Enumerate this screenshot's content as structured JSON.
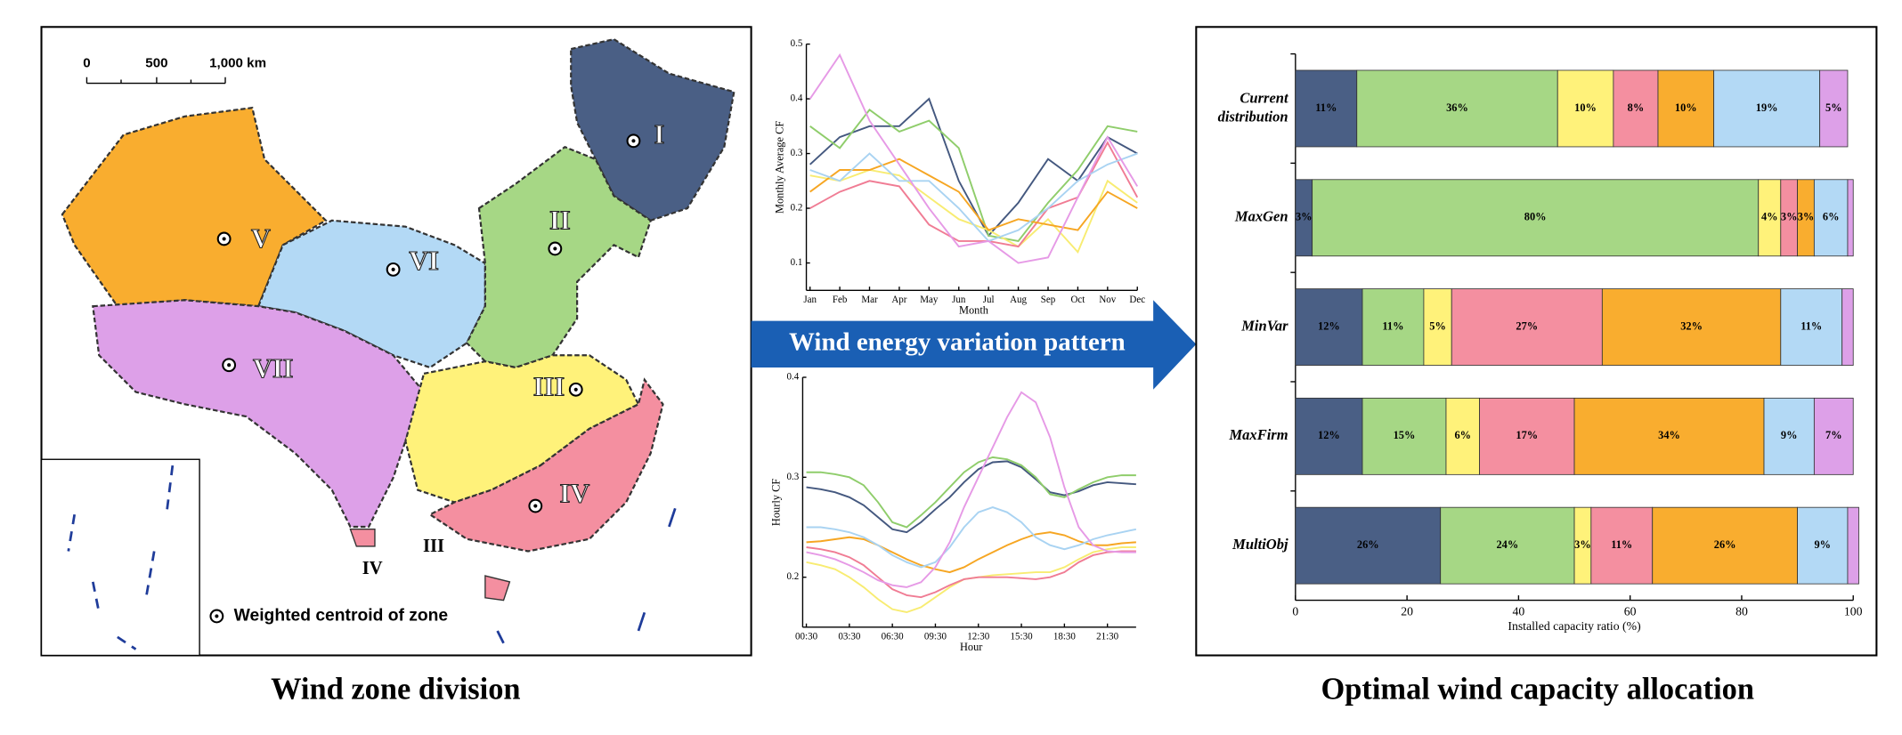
{
  "map": {
    "scale_labels": [
      "0",
      "500",
      "1,000 km"
    ],
    "zones": [
      "I",
      "II",
      "III",
      "IV",
      "V",
      "VI",
      "VII"
    ],
    "extra_labels": [
      "IV",
      "III"
    ],
    "legend": "Weighted centroid of zone",
    "caption": "Wind zone division"
  },
  "banner": "Wind energy variation pattern",
  "chart_data": [
    {
      "type": "line",
      "xlabel": "Month",
      "ylabel": "Monthly Average CF",
      "categories": [
        "Jan",
        "Feb",
        "Mar",
        "Apr",
        "May",
        "Jun",
        "Jul",
        "Aug",
        "Sep",
        "Oct",
        "Nov",
        "Dec"
      ],
      "ylim": [
        0.05,
        0.5
      ],
      "yticks": [
        0.1,
        0.2,
        0.3,
        0.4,
        0.5
      ],
      "series": [
        {
          "color": "#44587f",
          "values": [
            0.28,
            0.33,
            0.35,
            0.35,
            0.4,
            0.25,
            0.15,
            0.21,
            0.29,
            0.25,
            0.33,
            0.3
          ]
        },
        {
          "color": "#8fcd6b",
          "values": [
            0.35,
            0.31,
            0.38,
            0.34,
            0.36,
            0.31,
            0.15,
            0.14,
            0.21,
            0.27,
            0.35,
            0.34
          ]
        },
        {
          "color": "#f8ec72",
          "values": [
            0.26,
            0.25,
            0.27,
            0.26,
            0.22,
            0.18,
            0.16,
            0.13,
            0.18,
            0.12,
            0.25,
            0.21
          ]
        },
        {
          "color": "#f07c94",
          "values": [
            0.2,
            0.23,
            0.25,
            0.24,
            0.17,
            0.14,
            0.14,
            0.13,
            0.2,
            0.22,
            0.32,
            0.22
          ]
        },
        {
          "color": "#f6a623",
          "values": [
            0.23,
            0.27,
            0.27,
            0.29,
            0.26,
            0.23,
            0.16,
            0.18,
            0.17,
            0.16,
            0.23,
            0.2
          ]
        },
        {
          "color": "#a9d3f2",
          "values": [
            0.27,
            0.25,
            0.3,
            0.25,
            0.25,
            0.2,
            0.14,
            0.16,
            0.2,
            0.25,
            0.28,
            0.3
          ]
        },
        {
          "color": "#e69ae6",
          "values": [
            0.4,
            0.48,
            0.36,
            0.28,
            0.2,
            0.13,
            0.14,
            0.1,
            0.11,
            0.22,
            0.33,
            0.24
          ]
        }
      ]
    },
    {
      "type": "line",
      "xlabel": "Hour",
      "ylabel": "Hourly CF",
      "categories": [
        "00:30",
        null,
        null,
        "03:30",
        null,
        null,
        "06:30",
        null,
        null,
        "09:30",
        null,
        null,
        "12:30",
        null,
        null,
        "15:30",
        null,
        null,
        "18:30",
        null,
        null,
        "21:30",
        null,
        null
      ],
      "ylim": [
        0.15,
        0.4
      ],
      "yticks": [
        0.2,
        0.3,
        0.4
      ],
      "series": [
        {
          "color": "#44587f",
          "values": [
            0.29,
            0.288,
            0.285,
            0.28,
            0.272,
            0.26,
            0.248,
            0.245,
            0.255,
            0.268,
            0.28,
            0.295,
            0.308,
            0.315,
            0.316,
            0.31,
            0.298,
            0.285,
            0.282,
            0.286,
            0.292,
            0.295,
            0.294,
            0.293
          ]
        },
        {
          "color": "#8fcd6b",
          "values": [
            0.305,
            0.305,
            0.303,
            0.3,
            0.292,
            0.275,
            0.255,
            0.25,
            0.262,
            0.275,
            0.29,
            0.305,
            0.315,
            0.32,
            0.318,
            0.312,
            0.3,
            0.283,
            0.28,
            0.288,
            0.295,
            0.3,
            0.302,
            0.302
          ]
        },
        {
          "color": "#f8ec72",
          "values": [
            0.215,
            0.212,
            0.208,
            0.2,
            0.19,
            0.178,
            0.168,
            0.165,
            0.17,
            0.18,
            0.19,
            0.198,
            0.2,
            0.202,
            0.203,
            0.204,
            0.205,
            0.205,
            0.21,
            0.218,
            0.225,
            0.228,
            0.23,
            0.23
          ]
        },
        {
          "color": "#f07c94",
          "values": [
            0.23,
            0.228,
            0.225,
            0.22,
            0.212,
            0.2,
            0.188,
            0.182,
            0.18,
            0.185,
            0.192,
            0.198,
            0.2,
            0.2,
            0.2,
            0.199,
            0.198,
            0.2,
            0.205,
            0.215,
            0.222,
            0.225,
            0.226,
            0.226
          ]
        },
        {
          "color": "#f6a623",
          "values": [
            0.235,
            0.236,
            0.238,
            0.24,
            0.238,
            0.232,
            0.225,
            0.218,
            0.212,
            0.208,
            0.205,
            0.21,
            0.218,
            0.225,
            0.232,
            0.238,
            0.243,
            0.245,
            0.242,
            0.236,
            0.232,
            0.232,
            0.234,
            0.235
          ]
        },
        {
          "color": "#a9d3f2",
          "values": [
            0.25,
            0.25,
            0.248,
            0.245,
            0.24,
            0.232,
            0.222,
            0.215,
            0.21,
            0.215,
            0.23,
            0.25,
            0.265,
            0.27,
            0.265,
            0.255,
            0.24,
            0.232,
            0.228,
            0.232,
            0.238,
            0.242,
            0.245,
            0.248
          ]
        },
        {
          "color": "#e69ae6",
          "values": [
            0.225,
            0.222,
            0.218,
            0.212,
            0.205,
            0.197,
            0.192,
            0.19,
            0.195,
            0.21,
            0.235,
            0.27,
            0.3,
            0.33,
            0.36,
            0.385,
            0.375,
            0.34,
            0.29,
            0.25,
            0.232,
            0.226,
            0.225,
            0.225
          ]
        }
      ]
    },
    {
      "type": "bar",
      "orientation": "horizontal",
      "stacked": true,
      "title": "Optimal wind capacity allocation",
      "xlabel": "Installed capacity ratio (%)",
      "categories": [
        "Current distribution",
        "MaxGen",
        "MinVar",
        "MaxFirm",
        "MultiObj"
      ],
      "xlim": [
        0,
        100
      ],
      "xticks": [
        0,
        20,
        40,
        60,
        80,
        100
      ],
      "series": [
        {
          "color": "#4a5f85",
          "values": [
            11,
            3,
            12,
            12,
            26
          ],
          "value_labels": [
            "11%",
            "3%",
            "12%",
            "12%",
            "26%"
          ]
        },
        {
          "color": "#a6d785",
          "values": [
            36,
            80,
            11,
            15,
            24
          ],
          "value_labels": [
            "36%",
            "80%",
            "11%",
            "15%",
            "24%"
          ]
        },
        {
          "color": "#fff27a",
          "values": [
            10,
            4,
            5,
            6,
            3
          ],
          "value_labels": [
            "10%",
            "4%",
            "5%",
            "6%",
            "3%"
          ]
        },
        {
          "color": "#f48fa0",
          "values": [
            8,
            3,
            27,
            17,
            11
          ],
          "value_labels": [
            "8%",
            "3%",
            "27%",
            "17%",
            "11%"
          ]
        },
        {
          "color": "#f9ad2f",
          "values": [
            10,
            3,
            32,
            34,
            26
          ],
          "value_labels": [
            "10%",
            "3%",
            "32%",
            "34%",
            "26%"
          ]
        },
        {
          "color": "#b3d9f5",
          "values": [
            19,
            6,
            11,
            9,
            9
          ],
          "value_labels": [
            "19%",
            "6%",
            "11%",
            "9%",
            "9%"
          ]
        },
        {
          "color": "#dda0e8",
          "values": [
            5,
            1,
            2,
            7,
            2
          ],
          "value_labels": [
            "5%",
            null,
            null,
            "7%",
            null
          ]
        }
      ]
    }
  ]
}
